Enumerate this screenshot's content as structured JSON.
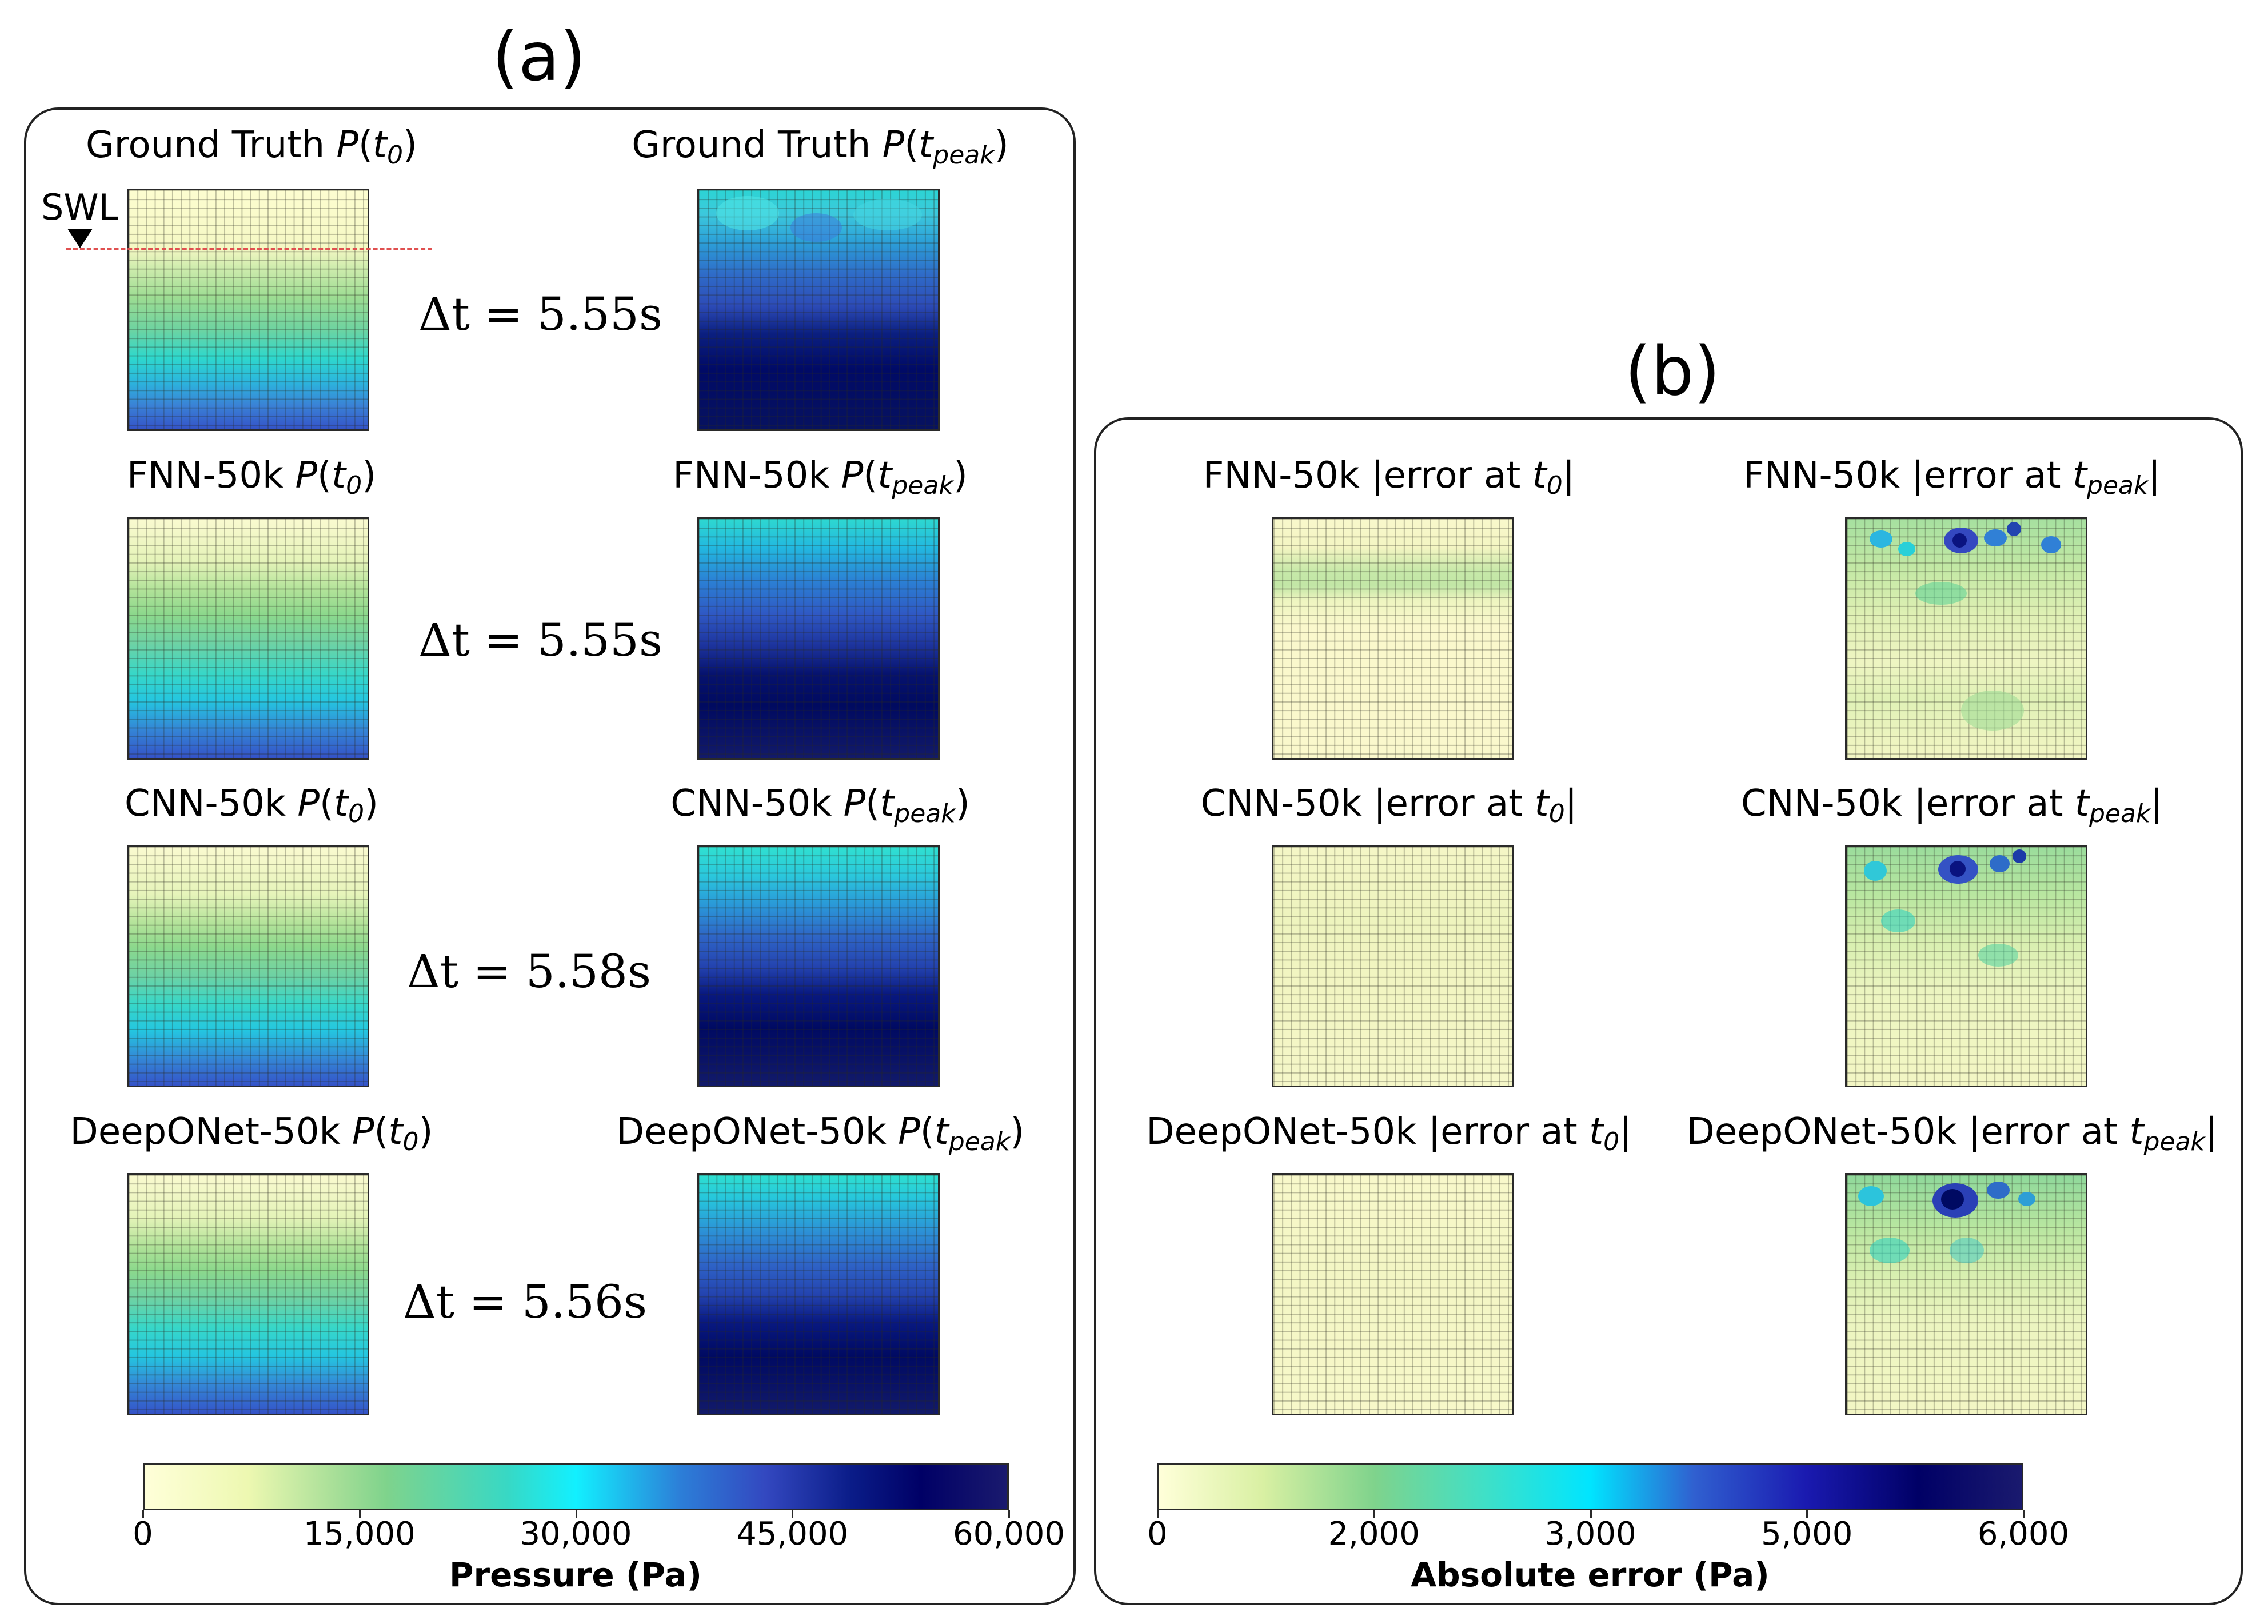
{
  "panel_a": {
    "letter": "(a)",
    "rows": [
      {
        "model": "Ground Truth",
        "left_title_prefix": "Ground Truth ",
        "right_title_prefix": "Ground Truth ",
        "delta": "5.55s"
      },
      {
        "model": "FNN-50k",
        "left_title_prefix": "FNN-50k ",
        "right_title_prefix": "FNN-50k ",
        "delta": "5.55s"
      },
      {
        "model": "CNN-50k",
        "left_title_prefix": "CNN-50k ",
        "right_title_prefix": "CNN-50k ",
        "delta": "5.58s"
      },
      {
        "model": "DeepONet-50k",
        "left_title_prefix": "DeepONet-50k ",
        "right_title_prefix": "DeepONet-50k ",
        "delta": "5.56s"
      }
    ],
    "p_symbol": "P",
    "t0_sub": "0",
    "tpeak_sub": "peak",
    "t_symbol": "t",
    "delta_prefix": "Δt = ",
    "swl_label": "SWL",
    "colorbar": {
      "label": "Pressure (Pa)",
      "ticks": [
        "0",
        "15,000",
        "30,000",
        "45,000",
        "60,000"
      ],
      "range": [
        0,
        60000
      ]
    }
  },
  "panel_b": {
    "letter": "(b)",
    "rows": [
      {
        "model": "FNN-50k",
        "left_title_prefix": "FNN-50k |error at ",
        "right_title_prefix": "FNN-50k |error at "
      },
      {
        "model": "CNN-50k",
        "left_title_prefix": "CNN-50k |error at ",
        "right_title_prefix": "CNN-50k |error at "
      },
      {
        "model": "DeepONet-50k",
        "left_title_prefix": "DeepONet-50k |error at ",
        "right_title_prefix": "DeepONet-50k |error at "
      }
    ],
    "close_bar": "|",
    "colorbar": {
      "label": "Absolute error (Pa)",
      "ticks": [
        "0",
        "2,000",
        "3,000",
        "5,000",
        "6,000"
      ]
    }
  },
  "colors": {
    "pressure_map": [
      "#ffffd9",
      "#edf8b1",
      "#7fcd7b",
      "#1fd6d6",
      "#1de5f2",
      "#2c7fb8",
      "#253494",
      "#081d58",
      "#000066",
      "#1a1a6e"
    ],
    "error_map": [
      "#ffffd9",
      "#d9f0a3",
      "#7fcd7b",
      "#3ee0c8",
      "#00e5ff",
      "#3060d0",
      "#1a1ab0",
      "#000066",
      "#1a1a6e"
    ]
  },
  "chart_data": {
    "type": "heatmap",
    "panels": [
      {
        "id": "a",
        "quantity": "Pressure (Pa)",
        "range": [
          0,
          60000
        ],
        "models": [
          "Ground Truth",
          "FNN-50k",
          "CNN-50k",
          "DeepONet-50k"
        ],
        "times": [
          "t0",
          "tpeak"
        ],
        "delta_t_s": [
          5.55,
          5.55,
          5.58,
          5.56
        ]
      },
      {
        "id": "b",
        "quantity": "Absolute error (Pa)",
        "range": [
          0,
          6000
        ],
        "models": [
          "FNN-50k",
          "CNN-50k",
          "DeepONet-50k"
        ],
        "times": [
          "t0",
          "tpeak"
        ]
      }
    ]
  }
}
